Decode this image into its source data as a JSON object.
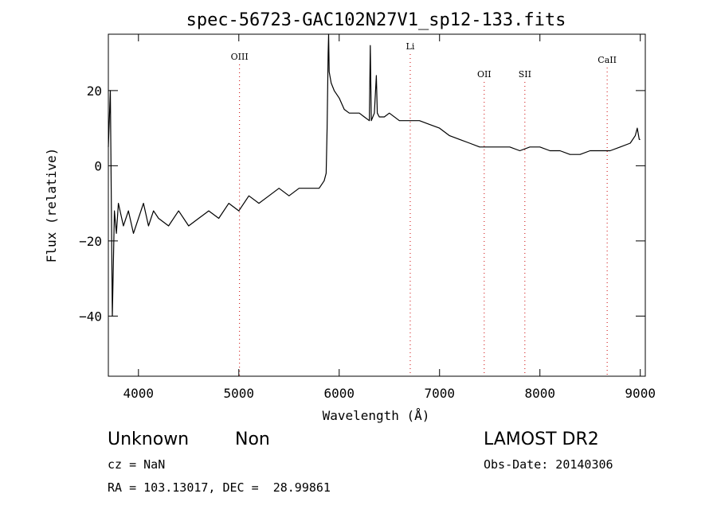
{
  "chart_data": {
    "type": "line",
    "title": "spec-56723-GAC102N27V1_sp12-133.fits",
    "xlabel": "Wavelength (Å)",
    "ylabel": "Flux (relative)",
    "xlim": [
      3700,
      9050
    ],
    "ylim": [
      -56,
      35
    ],
    "xticks": [
      4000,
      5000,
      6000,
      7000,
      8000,
      9000
    ],
    "yticks": [
      -40,
      -20,
      0,
      20
    ],
    "grid": false,
    "line_color": "#000000",
    "marker_color": "#cc0000",
    "series": [
      {
        "x": [
          3700,
          3720,
          3740,
          3760,
          3780,
          3800,
          3850,
          3900,
          3950,
          4000,
          4050,
          4100,
          4150,
          4200,
          4300,
          4400,
          4500,
          4600,
          4700,
          4800,
          4900,
          5000,
          5100,
          5200,
          5300,
          5400,
          5500,
          5600,
          5700,
          5800,
          5850,
          5870,
          5880,
          5890,
          5895,
          5900,
          5920,
          5950,
          6000,
          6050,
          6100,
          6150,
          6200,
          6250,
          6300,
          6310,
          6320,
          6350,
          6370,
          6380,
          6400,
          6450,
          6500,
          6600,
          6700,
          6800,
          6900,
          7000,
          7100,
          7200,
          7300,
          7400,
          7500,
          7600,
          7700,
          7800,
          7900,
          8000,
          8100,
          8200,
          8300,
          8400,
          8500,
          8600,
          8700,
          8800,
          8900,
          8950,
          8970,
          8990,
          9000
        ],
        "y": [
          5,
          20,
          -40,
          -12,
          -18,
          -10,
          -16,
          -12,
          -18,
          -14,
          -10,
          -16,
          -12,
          -14,
          -16,
          -12,
          -16,
          -14,
          -12,
          -14,
          -10,
          -12,
          -8,
          -10,
          -8,
          -6,
          -8,
          -6,
          -6,
          -6,
          -4,
          -2,
          10,
          30,
          35,
          25,
          22,
          20,
          18,
          15,
          14,
          14,
          14,
          13,
          12,
          32,
          12,
          14,
          24,
          14,
          13,
          13,
          14,
          12,
          12,
          12,
          11,
          10,
          8,
          7,
          6,
          5,
          5,
          5,
          5,
          4,
          5,
          5,
          4,
          4,
          3,
          3,
          4,
          4,
          4,
          5,
          6,
          8,
          10,
          7,
          7
        ]
      }
    ],
    "lines": [
      {
        "label": "OIII",
        "x": 5007
      },
      {
        "label": "Li",
        "x": 6708
      },
      {
        "label": "OII",
        "x": 7445
      },
      {
        "label": "SII",
        "x": 7850
      },
      {
        "label": "CaII",
        "x": 8670
      }
    ]
  },
  "info": {
    "class": "Unknown",
    "subclass": "Non",
    "survey": "LAMOST DR2",
    "cz": "cz = NaN",
    "obs_date": "Obs-Date: 20140306",
    "radec": "RA = 103.13017, DEC =  28.99861"
  }
}
